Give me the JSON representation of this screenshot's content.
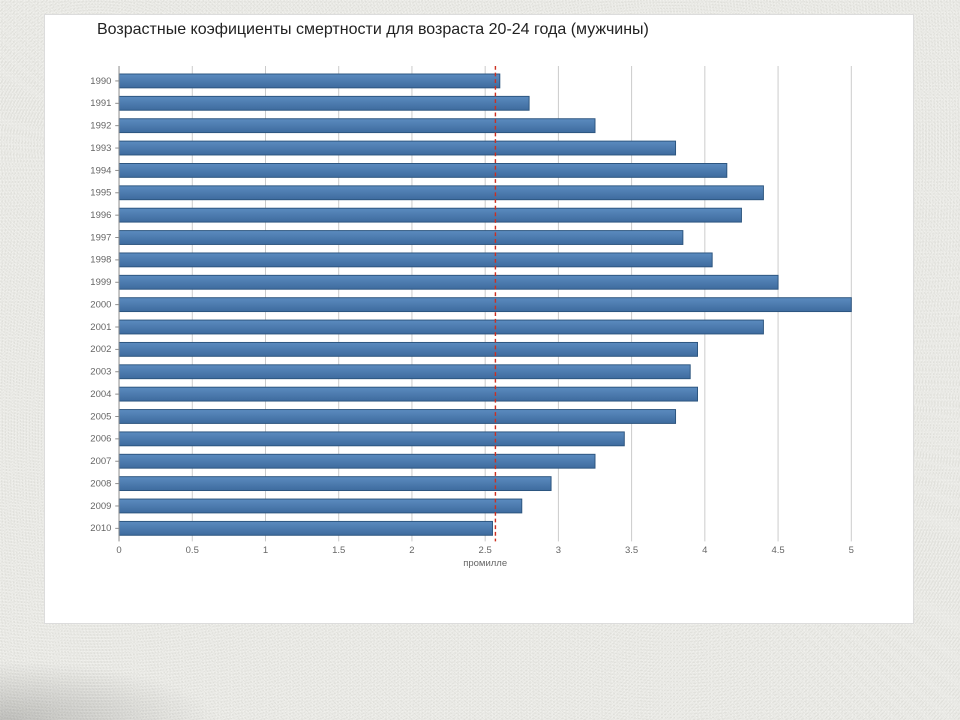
{
  "chart": {
    "type": "bar-horizontal",
    "title": "Возрастные коэфициенты смертности для возраста 20-24 года (мужчины)",
    "title_fontsize": 16,
    "title_color": "#222222",
    "background_color": "#ffffff",
    "card_border_color": "#dcdcdc",
    "page_background": "#e4e4e0",
    "x_axis": {
      "min": 0,
      "max": 5,
      "tick_step": 0.5,
      "ticks": [
        0,
        0.5,
        1,
        1.5,
        2,
        2.5,
        3,
        3.5,
        4,
        4.5,
        5
      ],
      "title": "промилле",
      "grid_color": "#c9c9c9",
      "label_fontsize": 10,
      "label_color": "#666666"
    },
    "y_axis": {
      "label_fontsize": 10,
      "label_color": "#666666",
      "axis_color": "#888888"
    },
    "categories": [
      "1990",
      "1991",
      "1992",
      "1993",
      "1994",
      "1995",
      "1996",
      "1997",
      "1998",
      "1999",
      "2000",
      "2001",
      "2002",
      "2003",
      "2004",
      "2005",
      "2006",
      "2007",
      "2008",
      "2009",
      "2010"
    ],
    "values": [
      2.6,
      2.8,
      3.25,
      3.8,
      4.15,
      4.4,
      4.25,
      3.85,
      4.05,
      4.5,
      5.0,
      4.4,
      3.95,
      3.9,
      3.95,
      3.8,
      3.45,
      3.25,
      2.95,
      2.75,
      2.55
    ],
    "bar_fill": "#4a7ab0",
    "bar_fill_gradient_top": "#5b8bbf",
    "bar_fill_gradient_bot": "#3e6b9e",
    "bar_stroke": "#2b547e",
    "bar_height_ratio": 0.62,
    "reference_line": {
      "value": 2.57,
      "color": "#cc3020",
      "dash": "4 3",
      "width": 1.5
    }
  }
}
